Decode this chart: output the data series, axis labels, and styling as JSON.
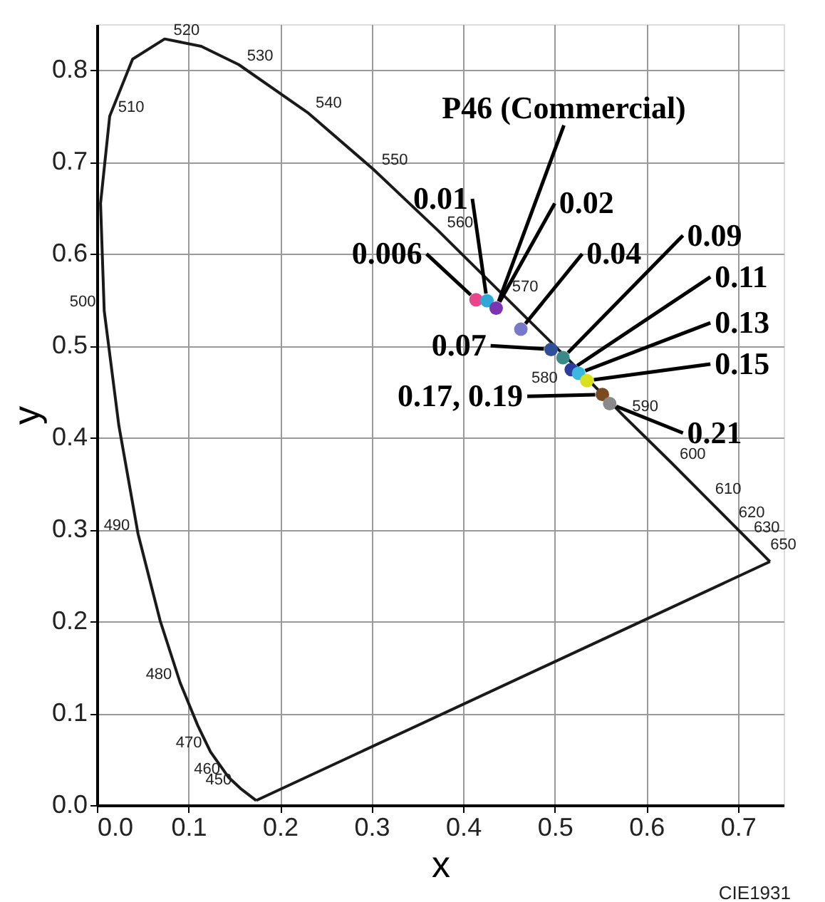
{
  "chart_data": {
    "type": "scatter",
    "xlabel": "x",
    "ylabel": "y",
    "xlim": [
      0,
      0.75
    ],
    "ylim": [
      0,
      0.85
    ],
    "xticks": [
      {
        "value": 0,
        "label": "0.0"
      },
      0.1,
      0.2,
      0.3,
      0.4,
      0.5,
      0.6,
      0.7
    ],
    "yticks": [
      {
        "value": 0,
        "label": "0.0"
      },
      0.1,
      0.2,
      0.3,
      0.4,
      0.5,
      0.6,
      0.7,
      0.8
    ],
    "grid": true,
    "legend": false,
    "series": [
      {
        "type": "line",
        "color": "#1a1a1a",
        "x": [
          0.174,
          0.157,
          0.144,
          0.124,
          0.11,
          0.091,
          0.069,
          0.045,
          0.024,
          0.008,
          0.004,
          0.014,
          0.039,
          0.074,
          0.114,
          0.155,
          0.23,
          0.302,
          0.373,
          0.444,
          0.513,
          0.575,
          0.627,
          0.666,
          0.692,
          0.708,
          0.726,
          0.735
        ],
        "values": [
          0.005,
          0.018,
          0.03,
          0.058,
          0.087,
          0.133,
          0.201,
          0.295,
          0.413,
          0.538,
          0.655,
          0.75,
          0.812,
          0.834,
          0.826,
          0.806,
          0.754,
          0.692,
          0.625,
          0.555,
          0.487,
          0.424,
          0.373,
          0.334,
          0.308,
          0.292,
          0.274,
          0.265
        ]
      },
      {
        "type": "line",
        "color": "#1a1a1a",
        "x": [
          0.174,
          0.735
        ],
        "values": [
          0.005,
          0.265
        ]
      },
      {
        "type": "scatter",
        "marker": "circle",
        "x": [
          0.414,
          0.426,
          0.436,
          0.463,
          0.496,
          0.509,
          0.518,
          0.526,
          0.535,
          0.552,
          0.56
        ],
        "values": [
          0.55,
          0.549,
          0.541,
          0.518,
          0.496,
          0.487,
          0.474,
          0.47,
          0.462,
          0.447,
          0.437
        ],
        "colors": [
          "#e8468c",
          "#2fa8d8",
          "#7b35b0",
          "#7a78c8",
          "#2f4f9a",
          "#3a8a8a",
          "#2a3ea0",
          "#39b8e0",
          "#d8e020",
          "#7a4a20",
          "#8a8a8a"
        ]
      }
    ],
    "annotations": [
      {
        "text": "0.006",
        "x": 0.414,
        "y": 0.55
      },
      {
        "text": "0.01",
        "x": 0.426,
        "y": 0.549
      },
      {
        "text": "P46 (Commercial)",
        "x": 0.436,
        "y": 0.541
      },
      {
        "text": "0.02",
        "x": 0.436,
        "y": 0.541
      },
      {
        "text": "0.04",
        "x": 0.463,
        "y": 0.518
      },
      {
        "text": "0.07",
        "x": 0.496,
        "y": 0.496
      },
      {
        "text": "0.09",
        "x": 0.509,
        "y": 0.487
      },
      {
        "text": "0.11",
        "x": 0.518,
        "y": 0.474
      },
      {
        "text": "0.13",
        "x": 0.526,
        "y": 0.47
      },
      {
        "text": "0.15",
        "x": 0.535,
        "y": 0.462
      },
      {
        "text": "0.17, 0.19",
        "x": 0.552,
        "y": 0.447
      },
      {
        "text": "0.21",
        "x": 0.56,
        "y": 0.437
      },
      {
        "text": "450",
        "x": 0.1566,
        "y": 0.0177
      },
      {
        "text": "460",
        "x": 0.144,
        "y": 0.0297
      },
      {
        "text": "470",
        "x": 0.1241,
        "y": 0.0578
      },
      {
        "text": "480",
        "x": 0.0913,
        "y": 0.1327
      },
      {
        "text": "490",
        "x": 0.0454,
        "y": 0.295
      },
      {
        "text": "500",
        "x": 0.0082,
        "y": 0.5384
      },
      {
        "text": "510",
        "x": 0.0139,
        "y": 0.7502
      },
      {
        "text": "520",
        "x": 0.0743,
        "y": 0.8338
      },
      {
        "text": "530",
        "x": 0.1547,
        "y": 0.8059
      },
      {
        "text": "540",
        "x": 0.2296,
        "y": 0.7543
      },
      {
        "text": "550",
        "x": 0.3016,
        "y": 0.6923
      },
      {
        "text": "560",
        "x": 0.3731,
        "y": 0.6245
      },
      {
        "text": "570",
        "x": 0.4441,
        "y": 0.5547
      },
      {
        "text": "580",
        "x": 0.5125,
        "y": 0.4866
      },
      {
        "text": "590",
        "x": 0.5752,
        "y": 0.4242
      },
      {
        "text": "600",
        "x": 0.627,
        "y": 0.3725
      },
      {
        "text": "610",
        "x": 0.6658,
        "y": 0.334
      },
      {
        "text": "620",
        "x": 0.6915,
        "y": 0.3083
      },
      {
        "text": "630",
        "x": 0.7079,
        "y": 0.292
      },
      {
        "text": "650",
        "x": 0.726,
        "y": 0.274
      },
      "CIE1931"
    ]
  }
}
